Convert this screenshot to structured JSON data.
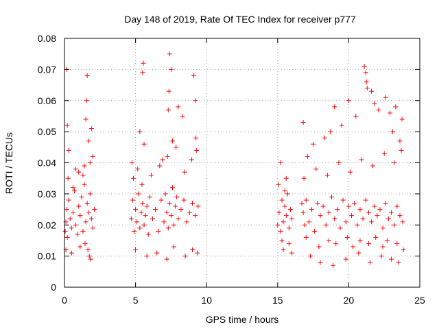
{
  "chart_data": {
    "type": "scatter",
    "title": "Day 148 of 2019, Rate Of TEC Index for receiver p777",
    "xlabel": "GPS time / hours",
    "ylabel": "ROTI / TECUs",
    "xlim": [
      0,
      25
    ],
    "ylim": [
      0,
      0.08
    ],
    "xticks": [
      0,
      5,
      10,
      15,
      20,
      25
    ],
    "yticks": [
      0,
      0.01,
      0.02,
      0.03,
      0.04,
      0.05,
      0.06,
      0.07,
      0.08
    ],
    "grid": true,
    "marker": "+",
    "color": "#ff0000",
    "series": [
      {
        "name": "ROTI",
        "x": [
          0.05,
          0.1,
          0.15,
          0.2,
          0.3,
          0.4,
          0.5,
          0.6,
          0.7,
          0.8,
          0.9,
          1.0,
          1.1,
          1.2,
          1.3,
          1.4,
          1.5,
          1.6,
          1.7,
          1.8,
          1.9,
          2.0,
          2.1,
          0.15,
          0.2,
          0.3,
          0.8,
          1.3,
          1.5,
          1.55,
          1.6,
          1.7,
          1.9,
          2.0,
          0.1,
          0.5,
          1.1,
          1.45,
          1.65,
          1.75,
          1.85,
          0.25,
          0.6,
          1.0,
          1.4,
          1.8,
          4.7,
          4.8,
          4.9,
          5.0,
          5.1,
          5.2,
          5.3,
          5.4,
          5.5,
          5.6,
          5.7,
          5.8,
          5.9,
          6.0,
          6.2,
          6.4,
          6.6,
          6.8,
          7.0,
          7.1,
          7.2,
          7.3,
          7.4,
          7.5,
          7.6,
          7.7,
          7.8,
          7.9,
          8.0,
          8.2,
          8.4,
          8.6,
          8.8,
          9.0,
          9.2,
          9.4,
          4.75,
          5.3,
          5.5,
          5.55,
          5.6,
          6.9,
          7.3,
          7.35,
          7.4,
          7.5,
          7.6,
          8.0,
          8.3,
          9.1,
          9.2,
          9.3,
          5.0,
          5.8,
          6.5,
          7.2,
          7.7,
          8.5,
          9.0,
          9.35,
          4.85,
          5.15,
          5.45,
          6.1,
          6.7,
          7.25,
          7.85,
          8.45,
          8.95,
          9.25,
          15.0,
          15.1,
          15.2,
          15.3,
          15.4,
          15.5,
          15.6,
          15.7,
          15.8,
          15.9,
          16.0,
          16.7,
          16.8,
          16.9,
          17.0,
          17.2,
          17.4,
          17.6,
          17.8,
          18.0,
          18.2,
          18.4,
          18.6,
          18.8,
          19.0,
          19.2,
          19.4,
          19.6,
          19.8,
          20.0,
          20.2,
          20.4,
          20.6,
          20.8,
          21.0,
          21.2,
          21.4,
          21.6,
          21.8,
          22.0,
          22.2,
          22.4,
          22.6,
          22.8,
          23.0,
          23.2,
          23.4,
          23.6,
          23.8,
          15.2,
          15.6,
          16.8,
          17.1,
          17.5,
          18.3,
          18.7,
          19.0,
          19.5,
          20.0,
          20.5,
          21.1,
          21.2,
          21.25,
          21.3,
          21.6,
          21.8,
          22.1,
          22.6,
          22.9,
          23.1,
          23.3,
          23.6,
          23.75,
          15.4,
          16.0,
          17.3,
          18.0,
          18.9,
          19.8,
          20.7,
          21.5,
          22.3,
          23.0,
          23.5,
          15.05,
          15.5,
          16.85,
          17.7,
          18.5,
          19.3,
          20.1,
          20.9,
          21.7,
          22.5,
          23.2,
          23.7,
          15.3,
          15.8,
          17.0,
          17.9,
          18.6,
          19.1,
          19.9,
          20.3,
          20.8,
          21.4,
          21.9,
          22.4,
          22.7,
          23.4,
          23.85
        ],
        "y": [
          0.018,
          0.021,
          0.025,
          0.016,
          0.028,
          0.022,
          0.019,
          0.024,
          0.031,
          0.02,
          0.017,
          0.026,
          0.023,
          0.029,
          0.018,
          0.033,
          0.021,
          0.027,
          0.024,
          0.03,
          0.022,
          0.019,
          0.025,
          0.07,
          0.052,
          0.044,
          0.038,
          0.036,
          0.054,
          0.06,
          0.068,
          0.047,
          0.051,
          0.042,
          0.012,
          0.011,
          0.013,
          0.014,
          0.012,
          0.01,
          0.009,
          0.035,
          0.032,
          0.037,
          0.039,
          0.04,
          0.022,
          0.028,
          0.018,
          0.025,
          0.021,
          0.03,
          0.019,
          0.024,
          0.027,
          0.02,
          0.023,
          0.026,
          0.017,
          0.029,
          0.022,
          0.025,
          0.018,
          0.028,
          0.021,
          0.03,
          0.024,
          0.019,
          0.027,
          0.023,
          0.032,
          0.02,
          0.026,
          0.029,
          0.022,
          0.025,
          0.028,
          0.021,
          0.024,
          0.027,
          0.023,
          0.026,
          0.04,
          0.05,
          0.069,
          0.072,
          0.046,
          0.041,
          0.057,
          0.063,
          0.075,
          0.07,
          0.047,
          0.058,
          0.055,
          0.068,
          0.06,
          0.044,
          0.012,
          0.01,
          0.011,
          0.009,
          0.013,
          0.01,
          0.012,
          0.011,
          0.035,
          0.038,
          0.033,
          0.036,
          0.039,
          0.042,
          0.045,
          0.037,
          0.041,
          0.048,
          0.02,
          0.024,
          0.018,
          0.028,
          0.021,
          0.026,
          0.023,
          0.03,
          0.019,
          0.025,
          0.022,
          0.027,
          0.024,
          0.02,
          0.028,
          0.021,
          0.025,
          0.018,
          0.027,
          0.023,
          0.026,
          0.02,
          0.024,
          0.029,
          0.022,
          0.025,
          0.019,
          0.028,
          0.021,
          0.026,
          0.023,
          0.027,
          0.02,
          0.025,
          0.022,
          0.028,
          0.024,
          0.021,
          0.026,
          0.023,
          0.025,
          0.019,
          0.027,
          0.022,
          0.024,
          0.02,
          0.026,
          0.023,
          0.021,
          0.04,
          0.035,
          0.053,
          0.042,
          0.046,
          0.048,
          0.05,
          0.058,
          0.052,
          0.06,
          0.055,
          0.071,
          0.069,
          0.066,
          0.064,
          0.063,
          0.059,
          0.057,
          0.061,
          0.056,
          0.05,
          0.058,
          0.047,
          0.054,
          0.012,
          0.011,
          0.01,
          0.008,
          0.007,
          0.009,
          0.011,
          0.008,
          0.01,
          0.009,
          0.008,
          0.033,
          0.031,
          0.035,
          0.038,
          0.036,
          0.04,
          0.037,
          0.041,
          0.039,
          0.043,
          0.04,
          0.044,
          0.015,
          0.014,
          0.016,
          0.013,
          0.015,
          0.014,
          0.016,
          0.013,
          0.015,
          0.014,
          0.016,
          0.013,
          0.015,
          0.014,
          0.012
        ]
      }
    ]
  }
}
